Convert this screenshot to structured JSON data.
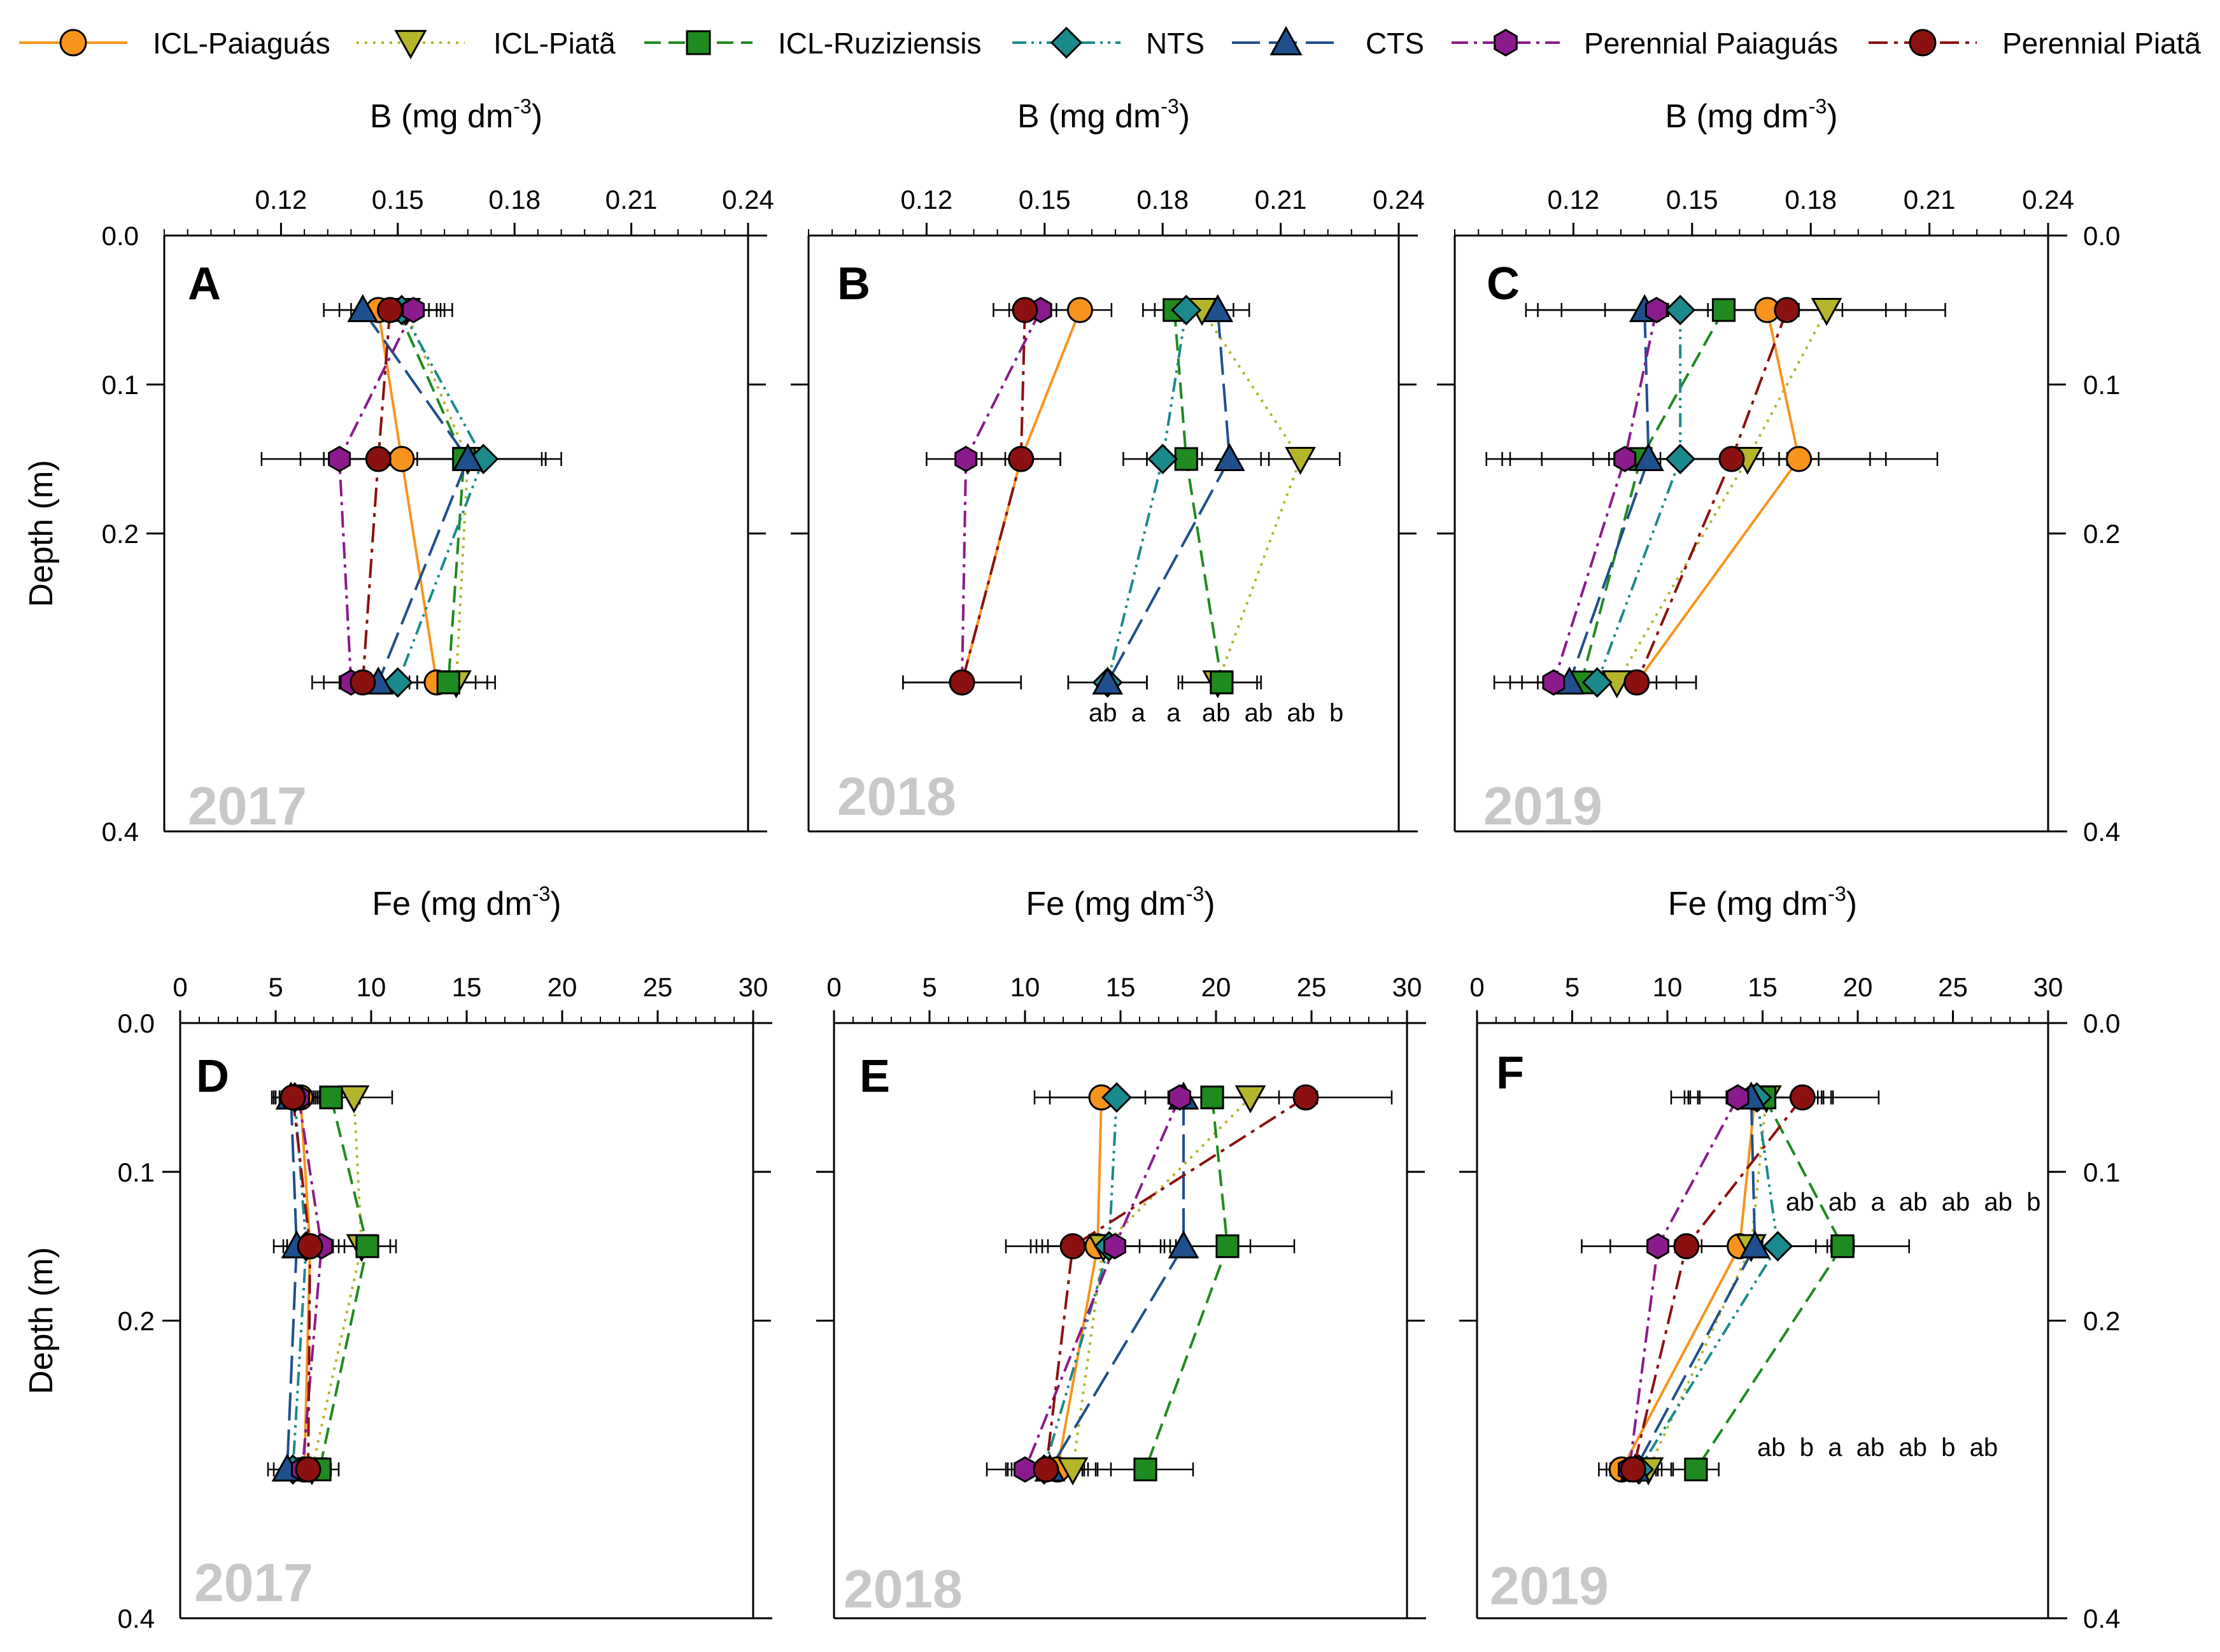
{
  "figure": {
    "xlabel_B": "B (mg dm",
    "xlabel_Fe": "Fe (mg dm",
    "xlabel_sup": "-3",
    "xlabel_close": ")",
    "ylabel": "Depth (m)"
  },
  "legend": [
    {
      "name": "ICL-Paiaguás",
      "color": "#f7941d",
      "marker": "circle",
      "dash": ""
    },
    {
      "name": "ICL-Piatã",
      "color": "#b5b52c",
      "marker": "triangle-down",
      "dash": "4,9"
    },
    {
      "name": "ICL-Ruziziensis",
      "color": "#1f8a1f",
      "marker": "square",
      "dash": "26,12"
    },
    {
      "name": "NTS",
      "color": "#1a8a8c",
      "marker": "diamond",
      "dash": "22,8,4,8,4,8"
    },
    {
      "name": "CTS",
      "color": "#1f4f8c",
      "marker": "triangle-up",
      "dash": "44,14"
    },
    {
      "name": "Perennial Paiaguás",
      "color": "#8b1a8c",
      "marker": "hexagon",
      "dash": "26,9,5,9"
    },
    {
      "name": "Perennial Piatã",
      "color": "#8b1010",
      "marker": "circle",
      "dash": "30,10,6,10"
    }
  ],
  "chart_data": [
    {
      "type": "line",
      "panel": "A",
      "year": "2017",
      "variable": "B",
      "depths": [
        0.05,
        0.15,
        0.3
      ],
      "xlim": [
        0.09,
        0.24
      ],
      "ylim": [
        0.0,
        0.4
      ],
      "xticks": [
        "0.12",
        "0.15",
        "0.18",
        "0.21",
        "0.24"
      ],
      "yticks": [
        "0.0",
        "0.1",
        "0.2",
        "0.4"
      ],
      "series": [
        {
          "name": "ICL-Paiaguás",
          "values": [
            0.145,
            0.151,
            0.16
          ],
          "errors": [
            0.01,
            0.02,
            0.01
          ]
        },
        {
          "name": "ICL-Piatã",
          "values": [
            0.152,
            0.168,
            0.165
          ],
          "errors": [
            0.01,
            0.02,
            0.01
          ]
        },
        {
          "name": "ICL-Ruziziensis",
          "values": [
            0.15,
            0.167,
            0.163
          ],
          "errors": [
            0.01,
            0.02,
            0.01
          ]
        },
        {
          "name": "NTS",
          "values": [
            0.151,
            0.172,
            0.15
          ],
          "errors": [
            0.01,
            0.02,
            0.01
          ]
        },
        {
          "name": "CTS",
          "values": [
            0.141,
            0.168,
            0.145
          ],
          "errors": [
            0.01,
            0.02,
            0.01
          ]
        },
        {
          "name": "Perennial Paiaguás",
          "values": [
            0.154,
            0.135,
            0.138
          ],
          "errors": [
            0.01,
            0.02,
            0.01
          ]
        },
        {
          "name": "Perennial Piatã",
          "values": [
            0.148,
            0.145,
            0.141
          ],
          "errors": [
            0.01,
            0.02,
            0.01
          ]
        }
      ],
      "annotations": []
    },
    {
      "type": "line",
      "panel": "B",
      "year": "2018",
      "variable": "B",
      "depths": [
        0.05,
        0.15,
        0.3
      ],
      "xlim": [
        0.09,
        0.24
      ],
      "ylim": [
        0.0,
        0.4
      ],
      "xticks": [
        "0.12",
        "0.15",
        "0.18",
        "0.21",
        "0.24"
      ],
      "yticks": [],
      "series": [
        {
          "name": "ICL-Paiaguás",
          "values": [
            0.159,
            0.144,
            0.129
          ],
          "errors": [
            0.008,
            0.01,
            0.015
          ]
        },
        {
          "name": "ICL-Piatã",
          "values": [
            0.19,
            0.215,
            0.194
          ],
          "errors": [
            0.008,
            0.01,
            0.01
          ]
        },
        {
          "name": "ICL-Ruziziensis",
          "values": [
            0.183,
            0.186,
            0.195
          ],
          "errors": [
            0.008,
            0.01,
            0.01
          ]
        },
        {
          "name": "NTS",
          "values": [
            0.186,
            0.18,
            0.166
          ],
          "errors": [
            0.008,
            0.01,
            0.01
          ]
        },
        {
          "name": "CTS",
          "values": [
            0.194,
            0.197,
            0.166
          ],
          "errors": [
            0.008,
            0.01,
            0.01
          ]
        },
        {
          "name": "Perennial Paiaguás",
          "values": [
            0.149,
            0.13,
            0.129
          ],
          "errors": [
            0.008,
            0.01,
            0.015
          ]
        },
        {
          "name": "Perennial Piatã",
          "values": [
            0.145,
            0.144,
            0.129
          ],
          "errors": [
            0.008,
            0.01,
            0.015
          ]
        }
      ],
      "annotations": [
        {
          "text": "ab  a   a   ab  ab  ab  b",
          "depth": 0.32
        }
      ]
    },
    {
      "type": "line",
      "panel": "C",
      "year": "2019",
      "variable": "B",
      "depths": [
        0.05,
        0.15,
        0.3
      ],
      "xlim": [
        0.09,
        0.24
      ],
      "ylim": [
        0.0,
        0.4
      ],
      "xticks": [
        "0.12",
        "0.15",
        "0.18",
        "0.21",
        "0.24"
      ],
      "yticks": [
        "0.0",
        "0.1",
        "0.2",
        "0.4"
      ],
      "series": [
        {
          "name": "ICL-Paiaguás",
          "values": [
            0.169,
            0.177,
            0.136
          ],
          "errors": [
            0.03,
            0.035,
            0.015
          ]
        },
        {
          "name": "ICL-Piatã",
          "values": [
            0.184,
            0.164,
            0.131
          ],
          "errors": [
            0.03,
            0.035,
            0.015
          ]
        },
        {
          "name": "ICL-Ruziziensis",
          "values": [
            0.158,
            0.137,
            0.122
          ],
          "errors": [
            0.03,
            0.035,
            0.015
          ]
        },
        {
          "name": "NTS",
          "values": [
            0.147,
            0.147,
            0.126
          ],
          "errors": [
            0.03,
            0.035,
            0.015
          ]
        },
        {
          "name": "CTS",
          "values": [
            0.138,
            0.139,
            0.119
          ],
          "errors": [
            0.03,
            0.035,
            0.015
          ]
        },
        {
          "name": "Perennial Paiaguás",
          "values": [
            0.141,
            0.133,
            0.115
          ],
          "errors": [
            0.03,
            0.035,
            0.015
          ]
        },
        {
          "name": "Perennial Piatã",
          "values": [
            0.174,
            0.16,
            0.136
          ],
          "errors": [
            0.03,
            0.035,
            0.015
          ]
        }
      ],
      "annotations": []
    },
    {
      "type": "line",
      "panel": "D",
      "year": "2017",
      "variable": "Fe",
      "depths": [
        0.05,
        0.15,
        0.3
      ],
      "xlim": [
        0,
        30
      ],
      "ylim": [
        0.0,
        0.4
      ],
      "xticks": [
        "0",
        "5",
        "10",
        "15",
        "20",
        "25",
        "30"
      ],
      "yticks": [
        "0.0",
        "0.1",
        "0.2",
        "0.4"
      ],
      "series": [
        {
          "name": "ICL-Paiaguás",
          "values": [
            6.3,
            6.8,
            6.5
          ],
          "errors": [
            1.0,
            1.2,
            1.0
          ]
        },
        {
          "name": "ICL-Piatã",
          "values": [
            9.1,
            9.5,
            6.9
          ],
          "errors": [
            2.0,
            1.5,
            1.0
          ]
        },
        {
          "name": "ICL-Ruziziensis",
          "values": [
            7.9,
            9.8,
            7.3
          ],
          "errors": [
            1.5,
            1.5,
            1.0
          ]
        },
        {
          "name": "NTS",
          "values": [
            6.0,
            6.6,
            5.9
          ],
          "errors": [
            1.0,
            1.2,
            1.0
          ]
        },
        {
          "name": "CTS",
          "values": [
            5.8,
            6.1,
            5.6
          ],
          "errors": [
            1.0,
            1.2,
            1.0
          ]
        },
        {
          "name": "Perennial Paiaguás",
          "values": [
            6.2,
            7.4,
            6.4
          ],
          "errors": [
            1.0,
            1.2,
            1.0
          ]
        },
        {
          "name": "Perennial Piatã",
          "values": [
            5.9,
            6.8,
            6.7
          ],
          "errors": [
            1.0,
            1.2,
            1.0
          ]
        }
      ],
      "annotations": []
    },
    {
      "type": "line",
      "panel": "E",
      "year": "2018",
      "variable": "Fe",
      "depths": [
        0.05,
        0.15,
        0.3
      ],
      "xlim": [
        0,
        30
      ],
      "ylim": [
        0.0,
        0.4
      ],
      "xticks": [
        "0",
        "5",
        "10",
        "15",
        "20",
        "25",
        "30"
      ],
      "yticks": [],
      "series": [
        {
          "name": "ICL-Paiaguás",
          "values": [
            14.0,
            13.8,
            11.7
          ],
          "errors": [
            3.5,
            3.5,
            2.0
          ]
        },
        {
          "name": "ICL-Piatã",
          "values": [
            21.8,
            14.1,
            12.5
          ],
          "errors": [
            3.5,
            3.5,
            2.0
          ]
        },
        {
          "name": "ICL-Ruziziensis",
          "values": [
            19.8,
            20.6,
            16.3
          ],
          "errors": [
            3.5,
            3.5,
            2.5
          ]
        },
        {
          "name": "NTS",
          "values": [
            14.8,
            14.4,
            11.0
          ],
          "errors": [
            3.5,
            3.5,
            2.0
          ]
        },
        {
          "name": "CTS",
          "values": [
            18.3,
            18.3,
            11.3
          ],
          "errors": [
            3.5,
            3.5,
            2.0
          ]
        },
        {
          "name": "Perennial Paiaguás",
          "values": [
            18.1,
            14.7,
            10.0
          ],
          "errors": [
            3.5,
            3.5,
            2.0
          ]
        },
        {
          "name": "Perennial Piatã",
          "values": [
            24.7,
            12.5,
            11.1
          ],
          "errors": [
            4.5,
            3.5,
            2.0
          ]
        }
      ],
      "annotations": []
    },
    {
      "type": "line",
      "panel": "F",
      "year": "2019",
      "variable": "Fe",
      "depths": [
        0.05,
        0.15,
        0.3
      ],
      "xlim": [
        0,
        30
      ],
      "ylim": [
        0.0,
        0.4
      ],
      "xticks": [
        "0",
        "5",
        "10",
        "15",
        "20",
        "25",
        "30"
      ],
      "yticks": [
        "0.0",
        "0.1",
        "0.2",
        "0.4"
      ],
      "series": [
        {
          "name": "ICL-Paiaguás",
          "values": [
            14.6,
            13.8,
            7.6
          ],
          "errors": [
            3.5,
            4.0,
            1.2
          ]
        },
        {
          "name": "ICL-Piatã",
          "values": [
            15.2,
            14.4,
            9.0
          ],
          "errors": [
            3.5,
            4.0,
            1.2
          ]
        },
        {
          "name": "ICL-Ruziziensis",
          "values": [
            15.1,
            19.2,
            11.5
          ],
          "errors": [
            3.5,
            3.5,
            1.2
          ]
        },
        {
          "name": "NTS",
          "values": [
            14.7,
            15.8,
            8.5
          ],
          "errors": [
            3.5,
            4.0,
            1.2
          ]
        },
        {
          "name": "CTS",
          "values": [
            14.4,
            14.6,
            8.3
          ],
          "errors": [
            3.5,
            4.0,
            1.2
          ]
        },
        {
          "name": "Perennial Paiaguás",
          "values": [
            13.7,
            9.5,
            8.0
          ],
          "errors": [
            3.5,
            4.0,
            1.2
          ]
        },
        {
          "name": "Perennial Piatã",
          "values": [
            17.1,
            11.0,
            8.2
          ],
          "errors": [
            4.0,
            4.0,
            1.2
          ]
        }
      ],
      "annotations": [
        {
          "text": "ab  ab  a  ab  ab  ab  b",
          "depth": 0.12
        },
        {
          "text": "ab  b  a  ab  ab  b  ab",
          "depth": 0.285
        }
      ]
    }
  ]
}
